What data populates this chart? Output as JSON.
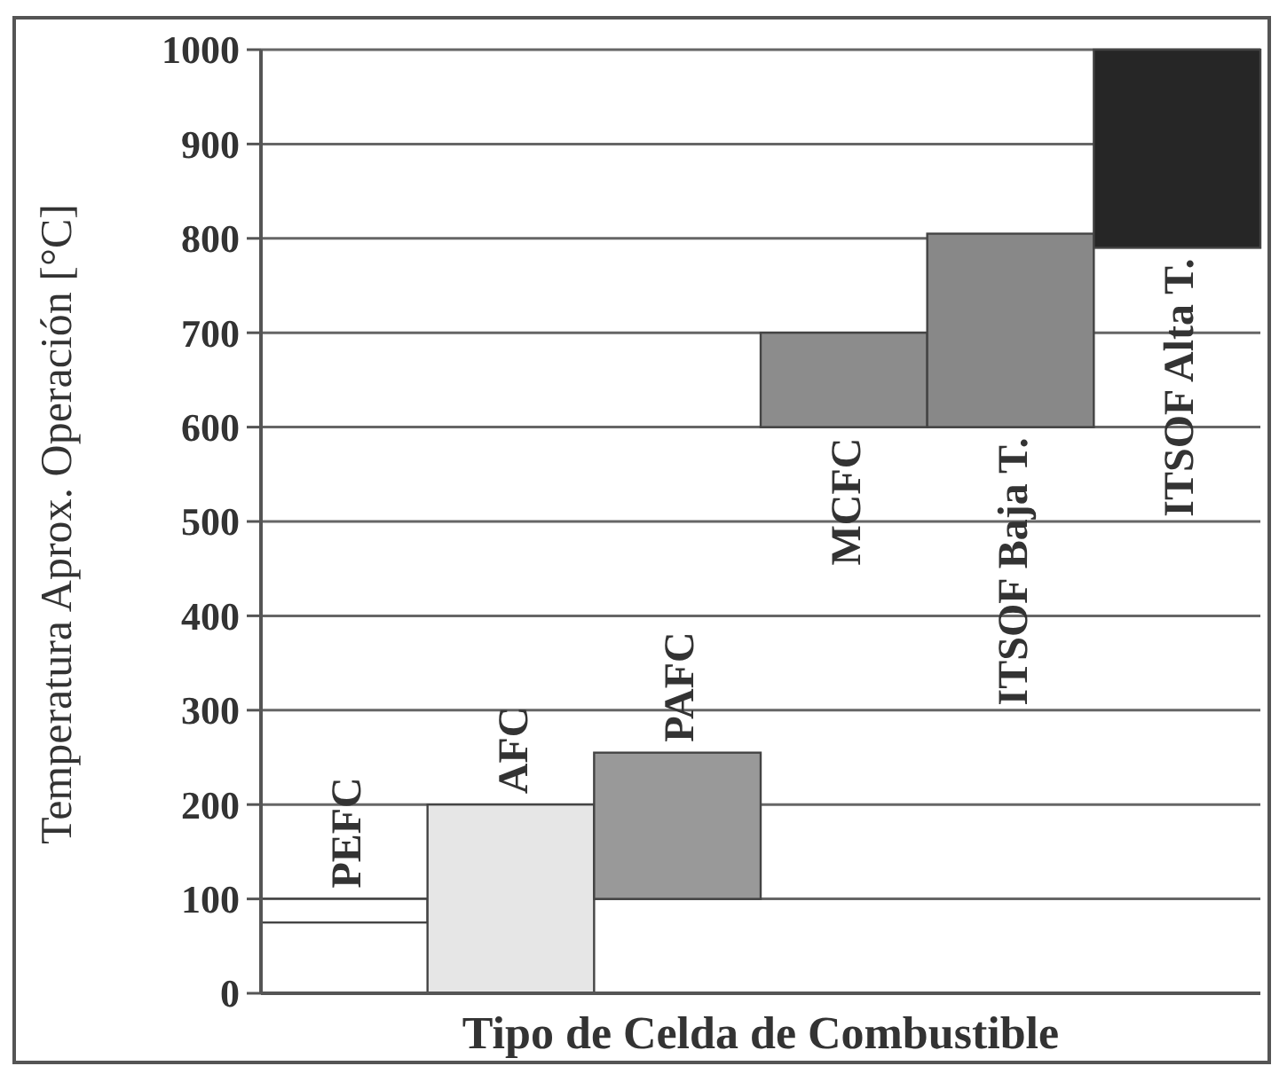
{
  "chart_data": {
    "type": "bar",
    "xlabel": "Tipo de Celda de Combustible",
    "ylabel": "Temperatura Aprox. Operación [°C]",
    "categories": [
      "PEFC",
      "AFC",
      "PAFC",
      "MCFC",
      "ITSOF Baja T.",
      "ITSOF Alta T."
    ],
    "base": [
      75,
      0,
      100,
      600,
      600,
      790
    ],
    "values": [
      25,
      200,
      155,
      100,
      205,
      210
    ],
    "colors": [
      "#ffffff",
      "#e6e6e6",
      "#999999",
      "#8c8c8c",
      "#888888",
      "#262626"
    ],
    "ylim": [
      0,
      1000
    ],
    "yticks": [
      0,
      100,
      200,
      300,
      400,
      500,
      600,
      700,
      800,
      900,
      1000
    ],
    "grid": "y"
  }
}
